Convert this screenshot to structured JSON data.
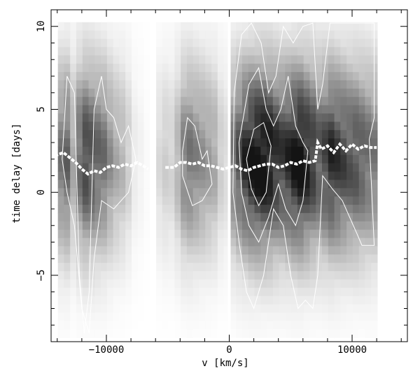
{
  "chart_data": {
    "type": "heatmap",
    "title": "",
    "xlabel": "v [km/s]",
    "ylabel": "time delay [days]",
    "xlim": [
      -14500,
      14500
    ],
    "ylim": [
      -9,
      11
    ],
    "xticks": [
      -10000,
      0,
      10000
    ],
    "xtick_labels": [
      "−10000",
      "0",
      "10000"
    ],
    "yticks": [
      10,
      5,
      0,
      -5
    ],
    "ytick_labels": [
      "10",
      "5",
      "0",
      "−5"
    ],
    "colormap": "gray (darker = higher cross-correlation)",
    "x_columns": [
      -13700,
      -13200,
      -12700,
      -12200,
      -11700,
      -11200,
      -10700,
      -10200,
      -9700,
      -9200,
      -8700,
      -8200,
      -7700,
      -7200,
      -6700,
      -6200,
      -5700,
      -5200,
      -4700,
      -4200,
      -3700,
      -3200,
      -2700,
      -2200,
      -1700,
      -1200,
      -700,
      -200,
      300,
      800,
      1300,
      1800,
      2300,
      2800,
      3300,
      3800,
      4300,
      4800,
      5300,
      5800,
      6300,
      6800,
      7300,
      7800,
      8300,
      8800,
      9300,
      9800,
      10300,
      10800,
      11300,
      11800
    ],
    "y_rows": [
      10,
      9.5,
      9,
      8.5,
      8,
      7.5,
      7,
      6.5,
      6,
      5.5,
      5,
      4.5,
      4,
      3.5,
      3,
      2.5,
      2,
      1.5,
      1,
      0.5,
      0,
      -0.5,
      -1,
      -1.5,
      -2,
      -2.5,
      -3,
      -3.5,
      -4,
      -4.5,
      -5,
      -5.5,
      -6,
      -6.5,
      -7,
      -7.5,
      -8,
      -8.5
    ],
    "column_strength": [
      0.55,
      0.62,
      0.35,
      0.6,
      0.75,
      0.7,
      0.62,
      0.58,
      0.45,
      0.35,
      0.3,
      0.2,
      0.08,
      0.05,
      0.02,
      0.0,
      0.15,
      0.2,
      0.18,
      0.3,
      0.5,
      0.55,
      0.5,
      0.45,
      0.4,
      0.35,
      0.2,
      0.15,
      0.55,
      0.7,
      0.85,
      0.95,
      1.0,
      1.0,
      0.95,
      0.85,
      0.8,
      0.85,
      0.95,
      1.0,
      0.9,
      0.8,
      0.7,
      0.75,
      0.85,
      0.8,
      0.75,
      0.7,
      0.7,
      0.65,
      0.6,
      0.55
    ],
    "centroid_lag_curve": {
      "x": [
        -14200,
        -13500,
        -13000,
        -12500,
        -12000,
        -11500,
        -11000,
        -10500,
        -10000,
        -9500,
        -9000,
        -8500,
        -8000,
        -7500,
        -7000,
        -6600,
        -5200,
        -4500,
        -4000,
        -3500,
        -3000,
        -2500,
        -2000,
        -1500,
        -1000,
        -500,
        0,
        500,
        1000,
        1500,
        2000,
        2500,
        3000,
        3500,
        4000,
        4500,
        5000,
        5500,
        6000,
        6500,
        7000,
        7200,
        7500,
        8000,
        8500,
        9000,
        9500,
        10000,
        10500,
        11000,
        11500,
        12000
      ],
      "y": [
        2.2,
        2.4,
        2.1,
        1.8,
        1.4,
        1.1,
        1.3,
        1.2,
        1.5,
        1.6,
        1.5,
        1.7,
        1.6,
        1.8,
        1.6,
        1.4,
        1.5,
        1.5,
        1.8,
        1.8,
        1.7,
        1.8,
        1.6,
        1.6,
        1.5,
        1.4,
        1.5,
        1.6,
        1.4,
        1.3,
        1.5,
        1.6,
        1.7,
        1.7,
        1.5,
        1.6,
        1.8,
        1.7,
        1.9,
        1.8,
        1.9,
        3.0,
        2.6,
        2.8,
        2.4,
        2.9,
        2.5,
        2.9,
        2.6,
        2.8,
        2.7,
        2.7
      ]
    },
    "contour_levels": [
      "outer",
      "middle",
      "inner"
    ]
  }
}
